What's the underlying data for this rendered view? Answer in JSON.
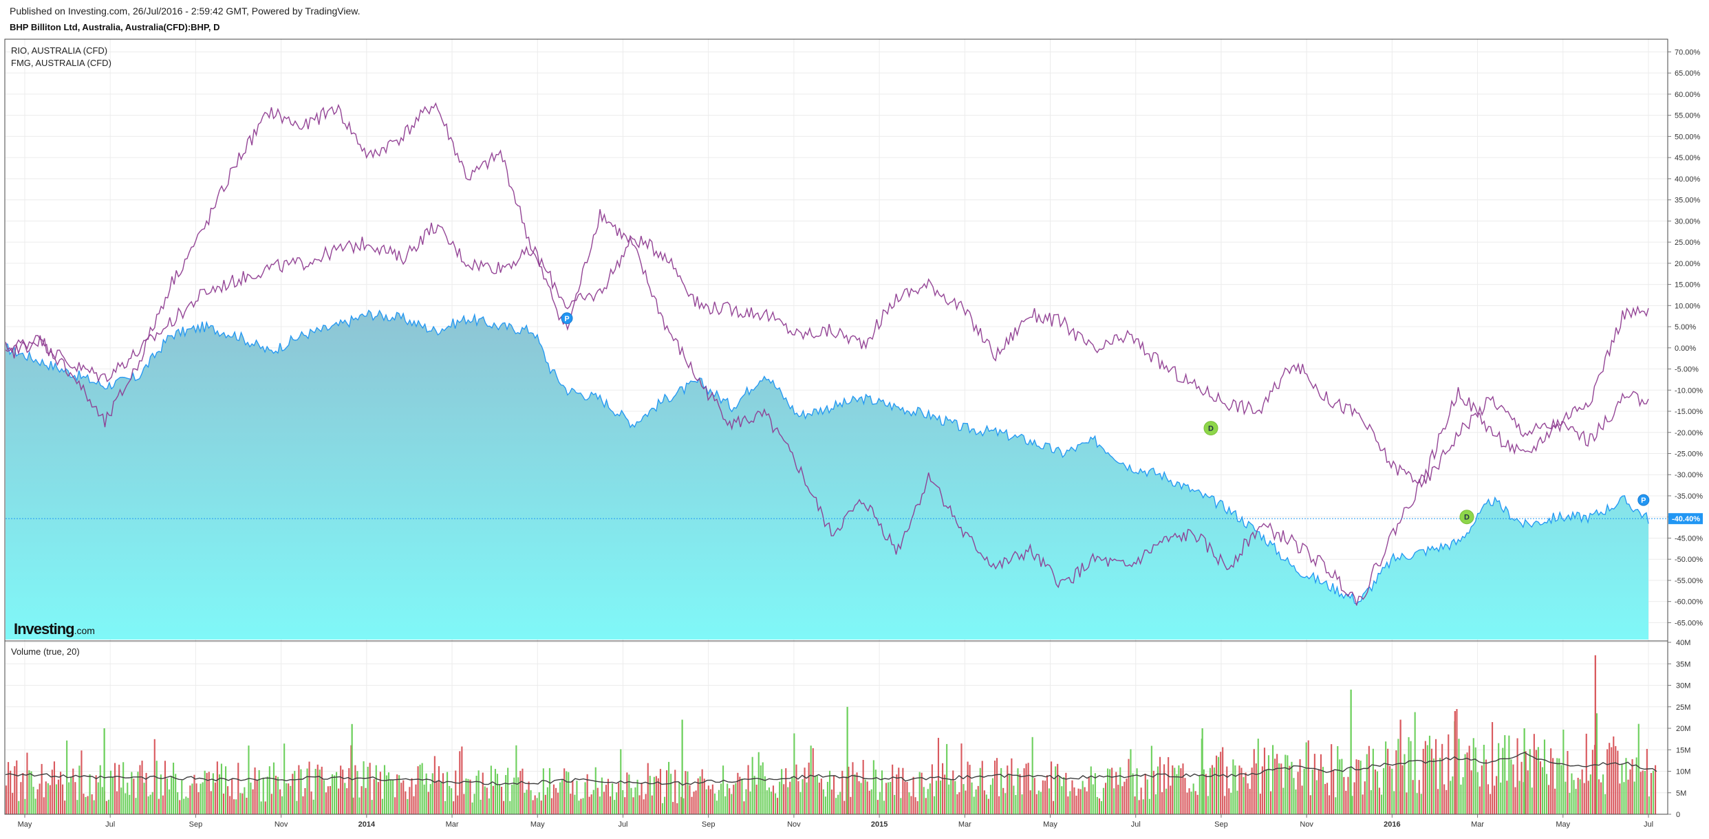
{
  "header": {
    "published": "Published on Investing.com, 26/Jul/2016 - 2:59:42 GMT, Powered by TradingView.",
    "symbol": "BHP Billiton Ltd, Australia, Australia(CFD):BHP, D"
  },
  "legend": [
    "RIO, AUSTRALIA (CFD)",
    "FMG, AUSTRALIA (CFD)"
  ],
  "volume_label": "Volume (true, 20)",
  "brand": {
    "main": "Investing",
    "suffix": ".com"
  },
  "colors": {
    "bhp_line": "#2196f3",
    "bhp_fill_top": "#8ec4d4",
    "bhp_fill_bottom": "#80f8f8",
    "comparison_lines": "#8e3b90",
    "volume_up": "#6ed05e",
    "volume_down": "#d9595e",
    "volume_ma": "#3c3c3c",
    "dividend_marker": "#8ed64a",
    "price_marker": "#2196f3"
  },
  "chart_data": [
    {
      "type": "line",
      "panel": "price",
      "x_ticks": [
        "May",
        "Jul",
        "Sep",
        "Nov",
        "2014",
        "Mar",
        "May",
        "Jul",
        "Sep",
        "Nov",
        "2015",
        "Mar",
        "May",
        "Jul",
        "Sep",
        "Nov",
        "2016",
        "Mar",
        "May",
        "Jul"
      ],
      "y_ticks": [
        "70.00%",
        "65.00%",
        "60.00%",
        "55.00%",
        "50.00%",
        "45.00%",
        "40.00%",
        "35.00%",
        "30.00%",
        "25.00%",
        "20.00%",
        "15.00%",
        "10.00%",
        "5.00%",
        "0.00%",
        "-5.00%",
        "-10.00%",
        "-15.00%",
        "-20.00%",
        "-25.00%",
        "-30.00%",
        "-35.00%",
        "-40.00%",
        "-45.00%",
        "-50.00%",
        "-55.00%",
        "-60.00%",
        "-65.00%"
      ],
      "ylim": [
        -69,
        73
      ],
      "current_value_label": "-40.40%",
      "x_domain": [
        0,
        100
      ],
      "series": [
        {
          "name": "BHP Billiton Ltd",
          "style": "area",
          "x": [
            0,
            2,
            4,
            6,
            8,
            10,
            12,
            14,
            16,
            18,
            20,
            22,
            24,
            26,
            28,
            30,
            32,
            33,
            34,
            36,
            38,
            40,
            42,
            44,
            46,
            48,
            50,
            52,
            54,
            56,
            58,
            60,
            62,
            64,
            66,
            68,
            70,
            72,
            74,
            76,
            78,
            80,
            82,
            84,
            86,
            88,
            90,
            92,
            94,
            96,
            98,
            99.5
          ],
          "y": [
            0,
            -3,
            -6,
            -9,
            -7,
            3,
            5,
            3,
            -1,
            3,
            5,
            8,
            7,
            4,
            7,
            5,
            4,
            -5,
            -10,
            -12,
            -18,
            -12,
            -8,
            -14,
            -6,
            -16,
            -14,
            -12,
            -14,
            -16,
            -19,
            -20,
            -22,
            -25,
            -22,
            -28,
            -30,
            -34,
            -38,
            -44,
            -52,
            -56,
            -60,
            -50,
            -48,
            -46,
            -36,
            -42,
            -40,
            -40,
            -36,
            -40.4
          ]
        },
        {
          "name": "RIO, AUSTRALIA (CFD)",
          "style": "line",
          "x": [
            0,
            2,
            4,
            6,
            8,
            10,
            12,
            14,
            16,
            18,
            20,
            22,
            24,
            26,
            28,
            30,
            32,
            34,
            36,
            38,
            40,
            42,
            44,
            46,
            48,
            50,
            52,
            54,
            56,
            58,
            60,
            62,
            64,
            66,
            68,
            70,
            72,
            74,
            76,
            78,
            80,
            82,
            84,
            86,
            88,
            90,
            92,
            94,
            96,
            98,
            99.5
          ],
          "y": [
            0,
            2,
            -4,
            -7,
            -1,
            6,
            13,
            16,
            19,
            20,
            23,
            25,
            21,
            29,
            20,
            19,
            23,
            10,
            13,
            26,
            22,
            10,
            9,
            8,
            3,
            4,
            1,
            12,
            15,
            9,
            -2,
            8,
            6,
            -1,
            3,
            -4,
            -9,
            -13,
            -15,
            -3,
            -12,
            -16,
            -28,
            -32,
            -20,
            -12,
            -20,
            -18,
            -22,
            -12,
            -12
          ]
        },
        {
          "name": "FMG, AUSTRALIA (CFD)",
          "style": "line",
          "x": [
            0,
            2,
            4,
            6,
            8,
            10,
            12,
            14,
            16,
            18,
            20,
            22,
            24,
            26,
            28,
            30,
            32,
            34,
            36,
            38,
            40,
            42,
            44,
            46,
            48,
            50,
            52,
            54,
            56,
            58,
            60,
            62,
            64,
            66,
            68,
            70,
            72,
            74,
            76,
            78,
            80,
            82,
            84,
            86,
            88,
            90,
            92,
            94,
            96,
            98,
            99.5
          ],
          "y": [
            -2,
            2,
            -6,
            -18,
            -4,
            15,
            28,
            44,
            56,
            52,
            57,
            45,
            50,
            58,
            40,
            46,
            22,
            4,
            32,
            24,
            5,
            -8,
            -18,
            -16,
            -28,
            -44,
            -36,
            -48,
            -30,
            -44,
            -52,
            -48,
            -56,
            -50,
            -52,
            -46,
            -44,
            -52,
            -42,
            -46,
            -52,
            -60,
            -44,
            -30,
            -10,
            -20,
            -26,
            -18,
            -12,
            8,
            8
          ]
        }
      ],
      "markers": [
        {
          "label": "P",
          "kind": "price",
          "x": 34,
          "y": 7
        },
        {
          "label": "D",
          "kind": "dividend",
          "x": 73,
          "y": -19
        },
        {
          "label": "D",
          "kind": "dividend",
          "x": 88.5,
          "y": -40
        },
        {
          "label": "P",
          "kind": "price",
          "x": 99.2,
          "y": -36
        }
      ]
    },
    {
      "type": "bar",
      "panel": "volume",
      "y_ticks": [
        "40M",
        "35M",
        "30M",
        "25M",
        "20M",
        "15M",
        "10M",
        "5M",
        "0"
      ],
      "ylim": [
        0,
        40
      ],
      "x_domain": [
        0,
        100
      ],
      "profile_x": [
        0,
        5,
        10,
        15,
        20,
        25,
        30,
        35,
        40,
        45,
        50,
        55,
        60,
        65,
        70,
        75,
        78,
        80,
        85,
        88,
        90,
        92,
        95,
        96.5,
        98,
        100
      ],
      "profile_y": [
        9,
        8,
        8.5,
        8,
        8.5,
        8,
        7.5,
        8,
        7,
        8,
        9,
        8,
        9,
        8,
        9,
        10,
        12,
        11,
        12,
        13,
        12,
        13,
        11,
        14,
        11,
        12
      ],
      "ma_x": [
        0,
        5,
        10,
        15,
        20,
        25,
        30,
        35,
        40,
        45,
        50,
        55,
        60,
        65,
        70,
        75,
        78,
        80,
        85,
        88,
        90,
        92,
        95,
        98,
        100
      ],
      "ma_y": [
        9.5,
        8.5,
        8.5,
        8,
        8.5,
        8,
        7,
        8,
        7,
        8,
        9,
        8,
        9,
        8.5,
        9,
        9,
        11,
        10,
        12,
        13,
        12,
        14,
        11,
        12,
        10
      ],
      "spikes": [
        {
          "x": 96.3,
          "value": 37,
          "dir": "down"
        },
        {
          "x": 51,
          "value": 25,
          "dir": "up"
        },
        {
          "x": 81.5,
          "value": 29,
          "dir": "up"
        },
        {
          "x": 84.5,
          "value": 22,
          "dir": "down"
        },
        {
          "x": 87.8,
          "value": 24,
          "dir": "down"
        },
        {
          "x": 92,
          "value": 20,
          "dir": "up"
        },
        {
          "x": 21,
          "value": 21,
          "dir": "up"
        },
        {
          "x": 6,
          "value": 20,
          "dir": "up"
        },
        {
          "x": 41,
          "value": 22,
          "dir": "up"
        },
        {
          "x": 72.5,
          "value": 20,
          "dir": "up"
        }
      ]
    }
  ]
}
